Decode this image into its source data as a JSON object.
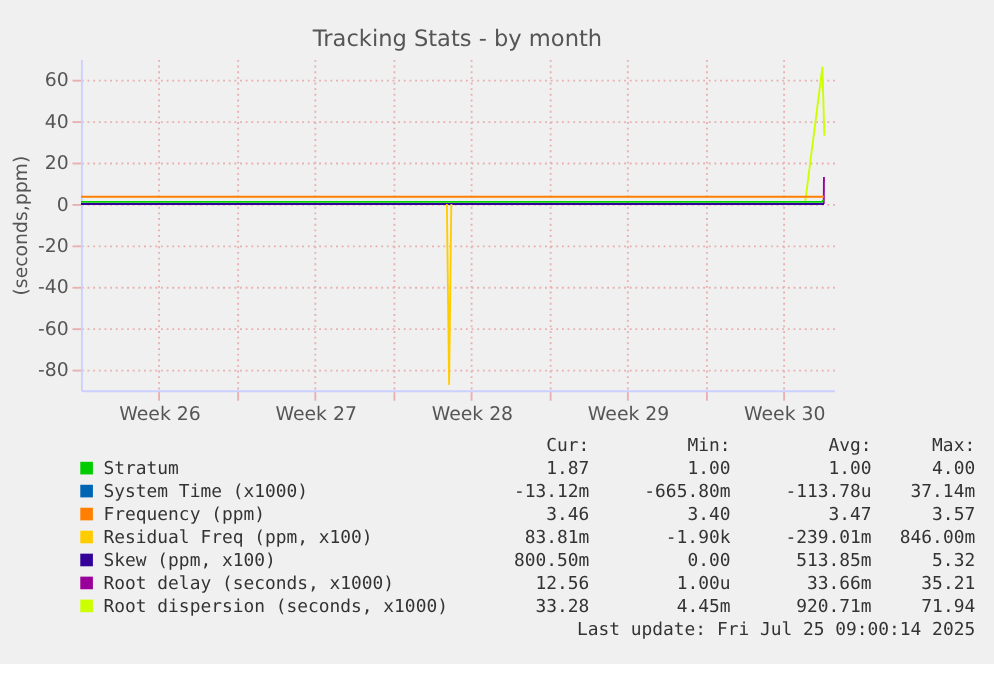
{
  "chart_data": {
    "type": "line",
    "title": "Tracking Stats - by month",
    "ylabel": "(seconds,ppm)",
    "xlim": [
      "2025-06-21T15:00",
      "2025-07-25T09:00"
    ],
    "ylim": [
      -90,
      70
    ],
    "xticks": [
      {
        "value": "2025-06-25T03:00",
        "label": "Week 26"
      },
      {
        "value": "2025-06-28T15:00",
        "label": null
      },
      {
        "value": "2025-07-02T03:00",
        "label": "Week 27"
      },
      {
        "value": "2025-07-05T15:00",
        "label": null
      },
      {
        "value": "2025-07-09T03:00",
        "label": "Week 28"
      },
      {
        "value": "2025-07-12T15:00",
        "label": null
      },
      {
        "value": "2025-07-16T03:00",
        "label": "Week 29"
      },
      {
        "value": "2025-07-19T15:00",
        "label": null
      },
      {
        "value": "2025-07-23T03:00",
        "label": "Week 30"
      }
    ],
    "yticks": [
      -80,
      -60,
      -40,
      -20,
      0,
      20,
      40,
      60
    ],
    "grid": true,
    "legend": "bottom",
    "series": [
      {
        "name": "Stratum",
        "color": "#00cc00",
        "x": [
          "2025-06-21T15:00",
          "2025-07-24T19:48",
          "2025-07-24T22:12"
        ],
        "values": [
          1,
          1,
          2
        ]
      },
      {
        "name": "System Time (x1000)",
        "color": "#0066b3"
      },
      {
        "name": "Frequency (ppm)",
        "color": "#ff8000",
        "x": [
          "2025-06-21T15:00",
          "2025-07-24T22:12"
        ],
        "values": [
          3.5,
          3.5
        ]
      },
      {
        "name": "Residual Freq (ppm, x100)",
        "color": "#ffcc00",
        "x": [
          "2025-07-08T00:36",
          "2025-07-08T03:00",
          "2025-07-08T05:24"
        ],
        "values": [
          0,
          -87,
          0
        ]
      },
      {
        "name": "Skew (ppm, x100)",
        "color": "#330099",
        "x": [
          "2025-06-21T15:00",
          "2025-07-24T22:12"
        ],
        "values": [
          0,
          0
        ]
      },
      {
        "name": "Root delay (seconds, x1000)",
        "color": "#990099",
        "x": [
          "2025-07-24T22:00",
          "2025-07-24T22:12"
        ],
        "values": [
          0,
          13
        ]
      },
      {
        "name": "Root dispersion (seconds, x1000)",
        "color": "#ccff00",
        "x": [
          "2025-07-24T01:48",
          "2025-07-24T20:30",
          "2025-07-24T22:40"
        ],
        "values": [
          0,
          66,
          33
        ]
      }
    ],
    "annotations": [
      "Cur:",
      "Min:",
      "Avg:",
      "Max:",
      "1.87",
      "1.00",
      "1.00",
      "4.00",
      "-13.12m",
      "-665.80m",
      "-113.78u",
      "37.14m",
      "3.46",
      "3.40",
      "3.47",
      "3.57",
      "83.81m",
      "-1.90k",
      "-239.01m",
      "846.00m",
      "800.50m",
      "0.00",
      "513.85m",
      "5.32",
      "12.56",
      "1.00u",
      "33.66m",
      "35.21",
      "33.28",
      "4.45m",
      "920.71m",
      "71.94",
      "Last update: Fri Jul 25 09:00:14 2025"
    ]
  }
}
